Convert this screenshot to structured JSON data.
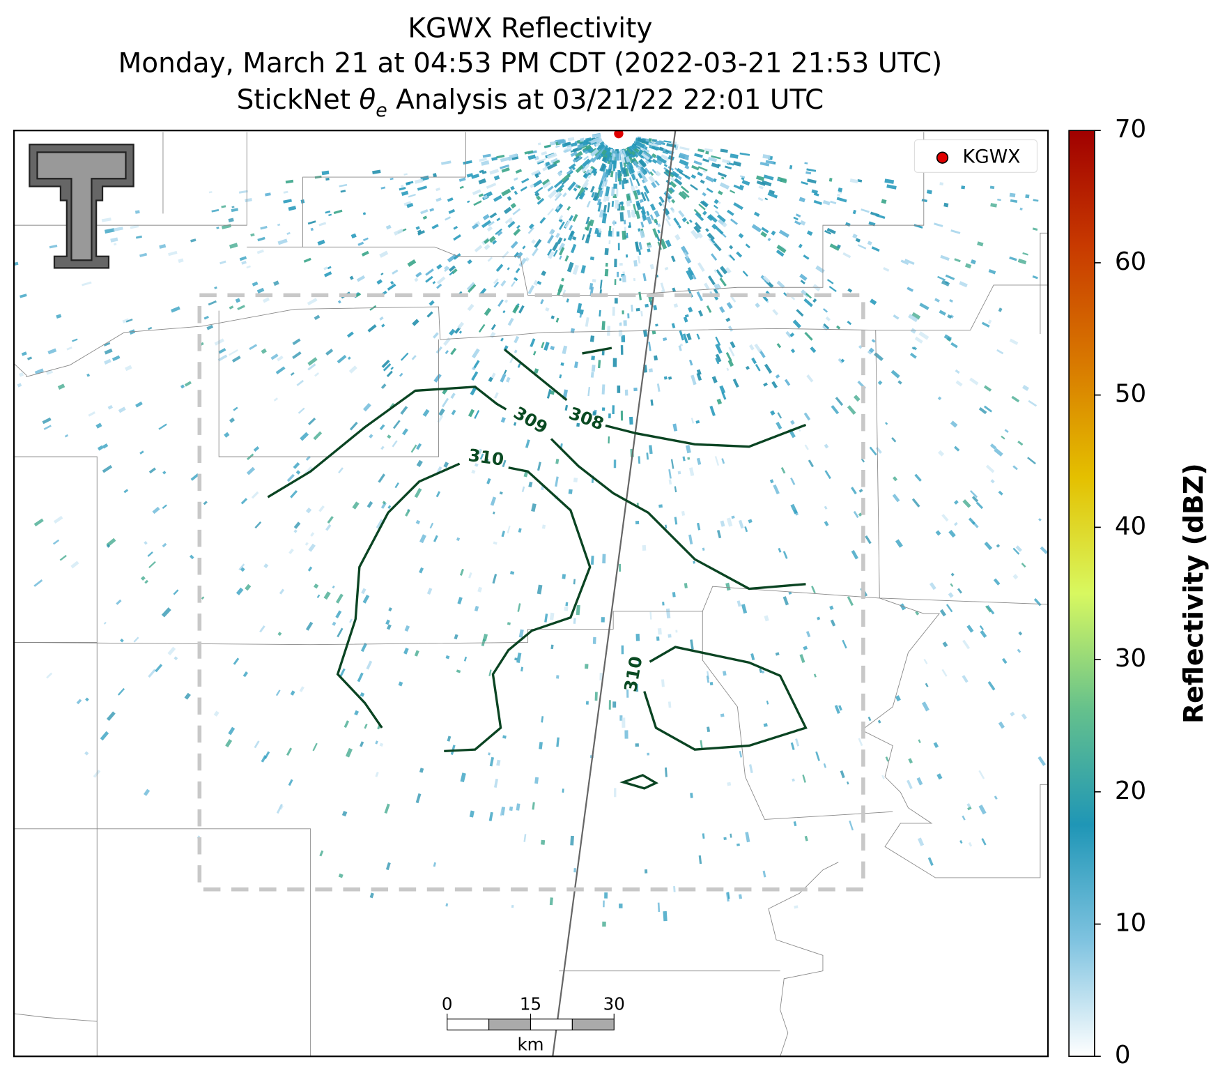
{
  "map": {
    "title_lines": [
      "KGWX Reflectivity",
      "Monday, March 21 at 04:53 PM CDT (2022-03-21 21:53 UTC)"
    ],
    "analysis_title": {
      "prefix": "StickNet ",
      "symbol": "θ",
      "subscript": "e",
      "suffix": " Analysis at 03/21/22 22:01 UTC"
    },
    "legend": {
      "label": "KGWX",
      "color": "#e00000"
    },
    "contour_labels": [
      "309",
      "308",
      "310",
      "310"
    ],
    "contour_color": "#0a4422",
    "scale_bar": {
      "ticks": [
        0,
        15,
        30
      ],
      "unit": "km"
    },
    "colorbar": {
      "label": "Reflectivity (dBZ)",
      "lim": [
        0,
        70
      ],
      "ticks": [
        0,
        10,
        20,
        30,
        40,
        50,
        60,
        70
      ],
      "colors": [
        "#ffffff",
        "#7fc3e0",
        "#1f96b6",
        "#65c18c",
        "#d8f860",
        "#e4c000",
        "#d87800",
        "#c83a00",
        "#a00000"
      ]
    }
  }
}
